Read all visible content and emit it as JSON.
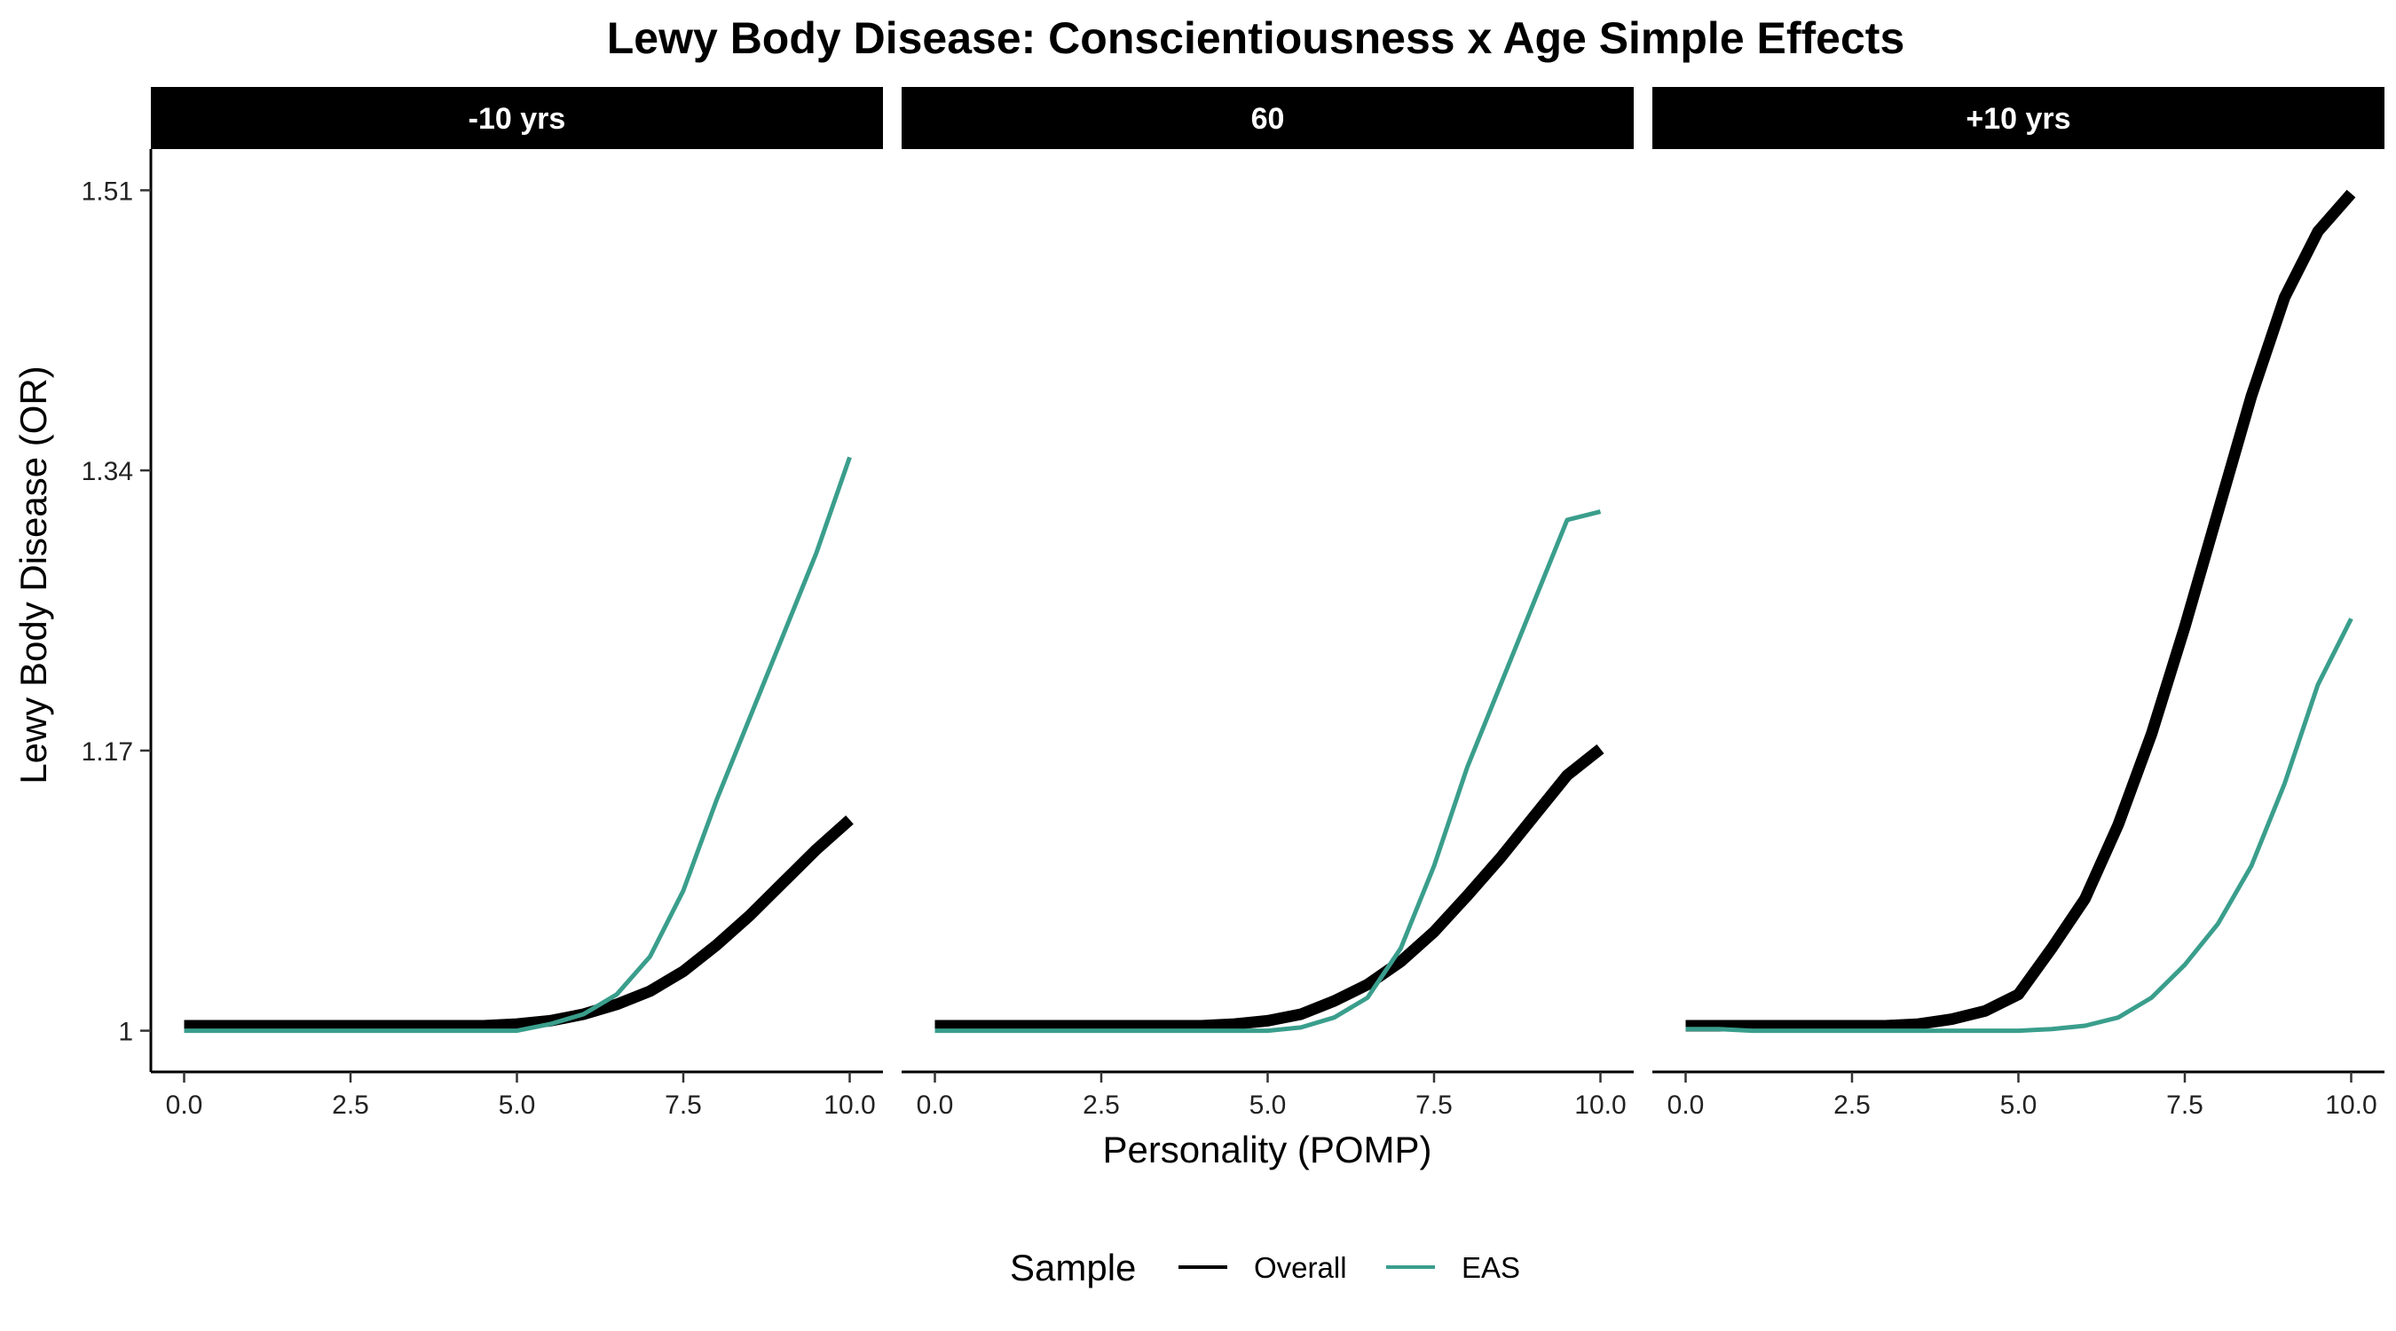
{
  "chart_data": {
    "type": "line",
    "title": "Lewy Body Disease: Conscientiousness x Age Simple Effects",
    "xlabel": "Personality (POMP)",
    "ylabel": "Lewy Body Disease (OR)",
    "xlim": [
      -0.5,
      10.5
    ],
    "ylim": [
      0.975,
      1.535
    ],
    "x_ticks": [
      0,
      2.5,
      5,
      7.5,
      10
    ],
    "x_tick_labels": [
      "0.0",
      "2.5",
      "5.0",
      "7.5",
      "10.0"
    ],
    "y_ticks": [
      1,
      1.17,
      1.34,
      1.51
    ],
    "y_tick_labels": [
      "1",
      "1.17",
      "1.34",
      "1.51"
    ],
    "grid": false,
    "legend": {
      "title": "Sample",
      "position": "bottom",
      "entries": [
        "Overall",
        "EAS"
      ]
    },
    "series_colors": {
      "Overall": "#000000",
      "EAS": "#3a9e8c"
    },
    "x": [
      0,
      0.5,
      1,
      1.5,
      2,
      2.5,
      3,
      3.5,
      4,
      4.5,
      5,
      5.5,
      6,
      6.5,
      7,
      7.5,
      8,
      8.5,
      9,
      9.5,
      10
    ],
    "panels": [
      {
        "label": "-10 yrs",
        "series": [
          {
            "name": "Overall",
            "values": [
              1.003,
              1.003,
              1.003,
              1.003,
              1.003,
              1.003,
              1.003,
              1.003,
              1.003,
              1.003,
              1.004,
              1.006,
              1.01,
              1.016,
              1.024,
              1.036,
              1.052,
              1.07,
              1.09,
              1.11,
              1.128
            ]
          },
          {
            "name": "EAS",
            "values": [
              1.0,
              1.0,
              1.0,
              1.0,
              1.0,
              1.0,
              1.0,
              1.0,
              1.0,
              1.0,
              1.0,
              1.004,
              1.01,
              1.022,
              1.045,
              1.085,
              1.14,
              1.19,
              1.24,
              1.29,
              1.348
            ]
          }
        ]
      },
      {
        "label": "60",
        "series": [
          {
            "name": "Overall",
            "values": [
              1.003,
              1.003,
              1.003,
              1.003,
              1.003,
              1.003,
              1.003,
              1.003,
              1.003,
              1.004,
              1.006,
              1.01,
              1.018,
              1.028,
              1.042,
              1.06,
              1.082,
              1.105,
              1.13,
              1.155,
              1.171
            ]
          },
          {
            "name": "EAS",
            "values": [
              1.0,
              1.0,
              1.0,
              1.0,
              1.0,
              1.0,
              1.0,
              1.0,
              1.0,
              1.0,
              1.0,
              1.002,
              1.008,
              1.02,
              1.05,
              1.1,
              1.16,
              1.21,
              1.26,
              1.31,
              1.315
            ]
          }
        ]
      },
      {
        "label": "+10 yrs",
        "series": [
          {
            "name": "Overall",
            "values": [
              1.003,
              1.003,
              1.003,
              1.003,
              1.003,
              1.003,
              1.003,
              1.004,
              1.007,
              1.012,
              1.022,
              1.05,
              1.08,
              1.125,
              1.18,
              1.245,
              1.315,
              1.385,
              1.445,
              1.485,
              1.508
            ]
          },
          {
            "name": "EAS",
            "values": [
              1.001,
              1.001,
              1.0,
              1.0,
              1.0,
              1.0,
              1.0,
              1.0,
              1.0,
              1.0,
              1.0,
              1.001,
              1.003,
              1.008,
              1.02,
              1.04,
              1.065,
              1.1,
              1.15,
              1.21,
              1.25
            ]
          }
        ]
      }
    ]
  }
}
